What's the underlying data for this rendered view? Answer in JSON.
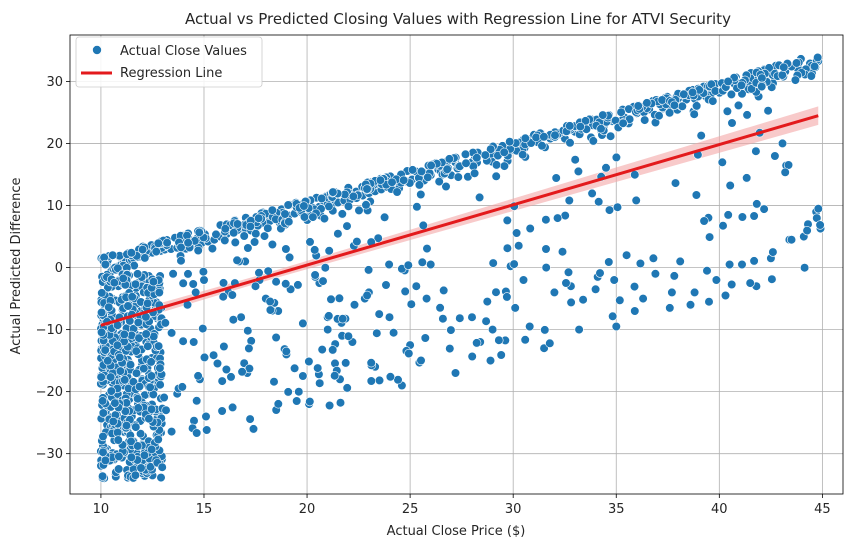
{
  "chart_data": {
    "type": "scatter",
    "title": "Actual vs Predicted Closing Values with Regression Line for ATVI Security",
    "xlabel": "Actual Close Price ($)",
    "ylabel": "Actual Predicted Difference",
    "xlim": [
      8.5,
      46.0
    ],
    "ylim": [
      -36.5,
      37.5
    ],
    "xticks": [
      10,
      15,
      20,
      25,
      30,
      35,
      40,
      45
    ],
    "yticks": [
      -30,
      -20,
      -10,
      0,
      10,
      20,
      30
    ],
    "grid": true,
    "legend": {
      "position": "top-left",
      "entries": [
        "Actual Close Values",
        "Regression Line"
      ]
    },
    "colors": {
      "points": "#1f77b4",
      "regression": "#e31a1c",
      "band": "#f4a6a6"
    },
    "regression": {
      "x": [
        10.0,
        44.8
      ],
      "y": [
        -9.3,
        24.5
      ],
      "ci": 0.6
    },
    "clusters": [
      {
        "band": "upper-diagonal",
        "x": [
          10.0,
          44.8
        ],
        "y": [
          0.0,
          33.0
        ],
        "density": "high"
      },
      {
        "band": "lower-left-mass",
        "x": [
          10.0,
          13.0
        ],
        "y": [
          -34.0,
          -1.0
        ],
        "density": "very-high"
      },
      {
        "band": "mid-scatter",
        "x": [
          13.0,
          45.0
        ],
        "y": [
          -27.0,
          28.0
        ],
        "density": "medium"
      }
    ],
    "points_x": [
      10.1,
      10.3,
      10.4,
      10.5,
      10.6,
      10.8,
      10.9,
      11.0,
      11.1,
      11.2,
      11.4,
      11.5,
      11.6,
      11.8,
      11.9,
      12.0,
      12.2,
      12.3,
      12.5,
      12.7,
      12.9,
      13.1,
      13.4,
      13.7,
      14.0,
      14.3,
      14.6,
      14.9,
      15.2,
      15.5,
      15.8,
      16.1,
      16.4,
      16.7,
      17.0,
      17.3,
      17.6,
      17.9,
      18.2,
      18.5,
      18.8,
      19.1,
      19.4,
      19.7,
      20.0,
      20.3,
      20.6,
      20.9,
      21.2,
      21.5,
      21.8,
      22.1,
      22.4,
      22.7,
      23.0,
      23.3,
      23.6,
      23.9,
      24.2,
      24.5,
      24.8,
      25.1,
      25.4,
      25.7,
      26.0,
      27.3,
      28.0,
      28.7,
      29.3,
      30.0,
      30.6,
      31.2,
      31.8,
      32.4,
      33.0,
      33.6,
      34.2,
      34.8,
      35.4,
      36.0,
      36.6,
      37.2,
      37.8,
      38.4,
      39.0,
      39.6,
      40.2,
      40.8,
      41.4,
      42.0,
      42.6,
      43.2,
      43.8,
      44.4,
      44.8,
      10.2,
      10.4,
      10.6,
      10.8,
      11.0,
      11.2,
      11.4,
      11.6,
      11.8,
      12.0,
      12.2,
      12.4,
      12.6,
      12.8,
      10.3,
      10.7,
      11.1,
      11.5,
      11.9,
      12.3,
      12.7,
      10.5,
      10.9,
      11.3,
      11.7,
      12.1,
      12.5,
      10.8,
      11.2,
      11.6,
      12.0,
      12.4,
      11.0,
      11.4,
      11.8,
      12.2,
      14.2,
      14.5,
      14.8,
      15.1,
      16.2,
      16.8,
      17.1,
      17.4,
      17.7,
      18.3,
      19.0,
      19.6,
      20.1,
      20.6,
      21.0,
      21.6,
      22.2,
      22.8,
      23.3,
      24.0,
      24.6,
      25.3,
      26.0,
      27.2,
      28.4,
      28.9,
      30.1,
      30.8,
      31.5,
      32.0,
      33.2,
      34.0,
      34.9,
      35.5,
      36.3,
      36.9,
      37.6,
      38.1,
      38.8,
      39.5,
      40.3,
      41.1,
      41.8,
      42.5,
      43.4,
      44.1,
      44.7,
      13.5,
      14.0,
      14.6,
      15.0,
      16.5,
      17.0,
      17.5,
      18.0,
      18.6,
      19.2,
      19.8,
      20.4,
      21.0,
      21.7,
      22.3,
      23.0,
      23.5,
      24.2,
      25.0,
      25.8,
      28.0,
      29.0,
      30.5,
      31.6,
      32.8,
      34.1,
      35.0,
      35.9,
      36.8,
      37.7,
      38.6,
      39.4,
      40.5,
      41.5,
      42.6,
      43.5,
      44.3,
      44.8
    ],
    "points_y": [
      -2.0,
      -1.4,
      -1.0,
      -0.6,
      -0.2,
      0.0,
      0.3,
      0.5,
      0.7,
      0.9,
      1.1,
      1.3,
      1.5,
      1.7,
      1.8,
      2.0,
      2.2,
      2.3,
      2.4,
      2.6,
      2.7,
      2.9,
      3.0,
      3.2,
      3.4,
      3.6,
      3.8,
      4.0,
      4.2,
      4.5,
      5.0,
      5.4,
      5.8,
      6.1,
      6.4,
      6.7,
      6.9,
      7.2,
      7.5,
      7.8,
      8.1,
      8.4,
      8.7,
      9.0,
      9.3,
      9.6,
      9.8,
      10.0,
      10.2,
      10.5,
      10.8,
      11.0,
      11.2,
      11.6,
      12.0,
      12.3,
      12.6,
      13.0,
      13.3,
      13.6,
      13.9,
      14.2,
      14.5,
      14.7,
      14.9,
      16.0,
      17.0,
      17.8,
      18.3,
      19.0,
      19.6,
      20.2,
      20.8,
      21.3,
      21.9,
      22.6,
      23.1,
      23.6,
      24.2,
      24.9,
      25.5,
      26.0,
      26.6,
      27.1,
      27.6,
      28.0,
      28.7,
      29.3,
      29.9,
      30.5,
      31.0,
      31.6,
      32.2,
      32.9,
      33.3,
      -5.0,
      -10.0,
      -15.0,
      -20.0,
      -25.0,
      -30.0,
      -33.0,
      -28.0,
      -22.0,
      -18.0,
      -12.0,
      -8.0,
      -4.0,
      -26.0,
      -7.0,
      -13.0,
      -19.0,
      -24.0,
      -29.0,
      -32.0,
      -27.0,
      -3.0,
      -9.0,
      -16.0,
      -21.0,
      -31.0,
      -33.5,
      -11.0,
      -17.0,
      -23.0,
      -28.5,
      -30.5,
      -14.0,
      -6.0,
      -2.5,
      -20.5,
      -6.0,
      -12.0,
      -18.0,
      -24.0,
      -4.0,
      -8.0,
      -17.0,
      -26.0,
      -2.0,
      -6.0,
      -14.0,
      -20.0,
      -22.0,
      -2.5,
      -10.0,
      -18.0,
      -12.0,
      -5.0,
      -16.0,
      -8.0,
      -19.0,
      -3.0,
      0.5,
      -17.0,
      -12.0,
      -15.0,
      -6.5,
      -9.5,
      -13.0,
      -4.0,
      -10.0,
      -3.5,
      -2.0,
      2.0,
      -5.0,
      -1.0,
      -6.5,
      1.0,
      -4.0,
      -5.5,
      -4.5,
      0.5,
      -3.0,
      1.5,
      4.5,
      5.0,
      9.0,
      -1.0,
      3.0,
      -4.0,
      -2.0,
      -2.5,
      1.0,
      -3.0,
      -5.0,
      -7.0,
      -3.5,
      -9.0,
      -1.5,
      -8.0,
      -11.0,
      -6.0,
      -4.0,
      -7.5,
      -10.5,
      -12.5,
      -5.0,
      -8.0,
      -10.0,
      -2.0,
      0.0,
      -3.0,
      -1.5,
      -9.5,
      -7.0,
      1.5,
      -4.0,
      -6.0,
      -0.5,
      0.5,
      -2.5,
      2.5,
      4.5,
      7.0,
      9.5
    ]
  }
}
